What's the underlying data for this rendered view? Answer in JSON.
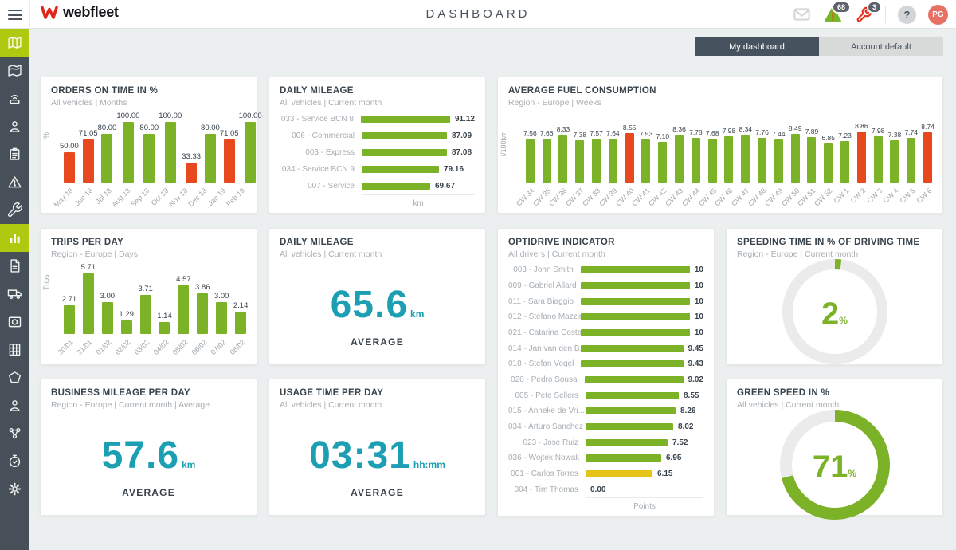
{
  "header": {
    "logo_text": "webfleet",
    "title": "DASHBOARD",
    "alerts_badge": "68",
    "service_badge": "3",
    "help_label": "?",
    "avatar_initials": "PG"
  },
  "tabs": {
    "my_dashboard": "My dashboard",
    "account_default": "Account default"
  },
  "sidebar": {
    "items": [
      {
        "icon": "map-icon",
        "active": true
      },
      {
        "icon": "map-routes-icon",
        "active": false
      },
      {
        "icon": "device-icon",
        "active": false
      },
      {
        "icon": "driver-icon",
        "active": false
      },
      {
        "icon": "orders-icon",
        "active": false
      },
      {
        "icon": "alerts-icon",
        "active": false
      },
      {
        "icon": "service-icon",
        "active": false
      },
      {
        "icon": "reports-icon",
        "active": true
      },
      {
        "icon": "pdf-report-icon",
        "active": false
      },
      {
        "icon": "vehicles-icon",
        "active": false
      },
      {
        "icon": "camera-icon",
        "active": false
      },
      {
        "icon": "company-icon",
        "active": false
      },
      {
        "icon": "areas-icon",
        "active": false
      },
      {
        "icon": "users-icon",
        "active": false
      },
      {
        "icon": "connections-icon",
        "active": false
      },
      {
        "icon": "timer-icon",
        "active": false
      },
      {
        "icon": "settings-icon",
        "active": false
      }
    ]
  },
  "colors": {
    "green": "#7cb228",
    "red": "#e8481e",
    "yellow": "#e5c417",
    "teal": "#1c9fb2",
    "donut_track": "#ebebeb"
  },
  "cards": {
    "orders_on_time": {
      "type": "bar",
      "title": "ORDERS ON TIME IN %",
      "subtitle": "All vehicles  |  Months",
      "ylabel": "%",
      "categories": [
        "May 18",
        "Jun 18",
        "Jul 18",
        "Aug 18",
        "Sep 18",
        "Oct 18",
        "Nov 18",
        "Dec 18",
        "Jan 19",
        "Feb 19"
      ],
      "values": [
        50.0,
        71.05,
        80.0,
        100.0,
        80.0,
        100.0,
        33.33,
        80.0,
        71.05,
        100.0
      ],
      "labels": [
        "50.00",
        "71.05",
        "80.00",
        "100.00",
        "80.00",
        "100.00",
        "33.33",
        "80.00",
        "71.05",
        "100.00"
      ],
      "bar_colors": [
        "red",
        "red",
        "green",
        "green",
        "green",
        "green",
        "red",
        "green",
        "red",
        "green"
      ]
    },
    "daily_mileage_chart": {
      "type": "hbar",
      "title": "DAILY MILEAGE",
      "subtitle": "All vehicles  |  Current month",
      "xlabel": "km",
      "rows": [
        {
          "label": "033 - Service BCN 8",
          "value": 91.12,
          "display": "91.12",
          "color": "green"
        },
        {
          "label": "006 - Commercial",
          "value": 87.09,
          "display": "87.09",
          "color": "green"
        },
        {
          "label": "003 - Express",
          "value": 87.08,
          "display": "87.08",
          "color": "green"
        },
        {
          "label": "034 - Service BCN 9",
          "value": 79.16,
          "display": "79.16",
          "color": "green"
        },
        {
          "label": "007 - Service",
          "value": 69.67,
          "display": "69.67",
          "color": "green"
        }
      ]
    },
    "fuel_consumption": {
      "type": "bar",
      "title": "AVERAGE FUEL CONSUMPTION",
      "subtitle": "Region - Europe  |  Weeks",
      "ylabel": "l/100km",
      "categories": [
        "CW 34",
        "CW 35",
        "CW 36",
        "CW 37",
        "CW 38",
        "CW 39",
        "CW 40",
        "CW 41",
        "CW 42",
        "CW 43",
        "CW 44",
        "CW 45",
        "CW 46",
        "CW 47",
        "CW 48",
        "CW 49",
        "CW 50",
        "CW 51",
        "CW 52",
        "CW 1",
        "CW 2",
        "CW 3",
        "CW 4",
        "CW 5",
        "CW 6"
      ],
      "values": [
        7.56,
        7.66,
        8.33,
        7.38,
        7.57,
        7.64,
        8.55,
        7.53,
        7.1,
        8.36,
        7.78,
        7.68,
        7.98,
        8.34,
        7.76,
        7.44,
        8.49,
        7.89,
        6.85,
        7.23,
        8.86,
        7.98,
        7.38,
        7.74,
        8.74
      ],
      "labels": [
        "7.56",
        "7.66",
        "8.33",
        "7.38",
        "7.57",
        "7.64",
        "8.55",
        "7.53",
        "7.10",
        "8.36",
        "7.78",
        "7.68",
        "7.98",
        "8.34",
        "7.76",
        "7.44",
        "8.49",
        "7.89",
        "6.85",
        "7.23",
        "8.86",
        "7.98",
        "7.38",
        "7.74",
        "8.74"
      ],
      "bar_colors": [
        "green",
        "green",
        "green",
        "green",
        "green",
        "green",
        "red",
        "green",
        "green",
        "green",
        "green",
        "green",
        "green",
        "green",
        "green",
        "green",
        "green",
        "green",
        "green",
        "green",
        "red",
        "green",
        "green",
        "green",
        "red"
      ]
    },
    "trips_per_day": {
      "type": "bar",
      "title": "TRIPS PER DAY",
      "subtitle": "Region - Europe  |  Days",
      "ylabel": "Trips",
      "categories": [
        "30/01",
        "31/01",
        "01/02",
        "02/02",
        "03/02",
        "04/02",
        "05/02",
        "06/02",
        "07/02",
        "08/02"
      ],
      "values": [
        2.71,
        5.71,
        3.0,
        1.29,
        3.71,
        1.14,
        4.57,
        3.86,
        3.0,
        2.14
      ],
      "labels": [
        "2.71",
        "5.71",
        "3.00",
        "1.29",
        "3.71",
        "1.14",
        "4.57",
        "3.86",
        "3.00",
        "2.14"
      ],
      "bar_colors": [
        "green",
        "green",
        "green",
        "green",
        "green",
        "green",
        "green",
        "green",
        "green",
        "green"
      ]
    },
    "daily_mileage_avg": {
      "type": "kpi",
      "title": "DAILY MILEAGE",
      "subtitle": "All vehicles  |  Current month",
      "value": "65.6",
      "unit": "km",
      "caption": "AVERAGE"
    },
    "optidrive": {
      "type": "hbar",
      "title": "OPTIDRIVE INDICATOR",
      "subtitle": "All drivers  |  Current month",
      "xlabel": "Points",
      "rows": [
        {
          "label": "003 - John Smith",
          "value": 10,
          "display": "10",
          "color": "green"
        },
        {
          "label": "009 - Gabriel Allard",
          "value": 10,
          "display": "10",
          "color": "green"
        },
        {
          "label": "011 - Sara Biaggio",
          "value": 10,
          "display": "10",
          "color": "green"
        },
        {
          "label": "012 - Stefano Mazzini",
          "value": 10,
          "display": "10",
          "color": "green"
        },
        {
          "label": "021 - Catarina Costa",
          "value": 10,
          "display": "10",
          "color": "green"
        },
        {
          "label": "014 - Jan van den B...",
          "value": 9.45,
          "display": "9.45",
          "color": "green"
        },
        {
          "label": "018 - Stefan Vogel",
          "value": 9.43,
          "display": "9.43",
          "color": "green"
        },
        {
          "label": "020 - Pedro Sousa",
          "value": 9.02,
          "display": "9.02",
          "color": "green"
        },
        {
          "label": "005 - Pete Sellers",
          "value": 8.55,
          "display": "8.55",
          "color": "green"
        },
        {
          "label": "015 - Anneke de Vri...",
          "value": 8.26,
          "display": "8.26",
          "color": "green"
        },
        {
          "label": "034 - Arturo Sanchez",
          "value": 8.02,
          "display": "8.02",
          "color": "green"
        },
        {
          "label": "023 - Jose Ruiz",
          "value": 7.52,
          "display": "7.52",
          "color": "green"
        },
        {
          "label": "036 - Wojtek Nowak",
          "value": 6.95,
          "display": "6.95",
          "color": "green"
        },
        {
          "label": "001 - Carlos Torres",
          "value": 6.15,
          "display": "6.15",
          "color": "yellow"
        },
        {
          "label": "004 - Tim Thomas",
          "value": 0,
          "display": "0.00",
          "color": "green"
        }
      ]
    },
    "speeding_time": {
      "type": "donut",
      "title": "SPEEDING TIME IN % OF DRIVING TIME",
      "subtitle": "Region - Europe  |  Current month",
      "percent": 2,
      "display": "2",
      "unit": "%"
    },
    "business_mileage": {
      "type": "kpi",
      "title": "BUSINESS MILEAGE PER DAY",
      "subtitle": "Region - Europe  |  Current month  |  Average",
      "value": "57.6",
      "unit": "km",
      "caption": "AVERAGE"
    },
    "usage_time": {
      "type": "kpi",
      "title": "USAGE TIME PER DAY",
      "subtitle": "All vehicles  |  Current month",
      "value": "03:31",
      "unit": "hh:mm",
      "caption": "AVERAGE"
    },
    "green_speed": {
      "type": "donut",
      "title": "GREEN SPEED IN %",
      "subtitle": "All vehicles  |  Current month",
      "percent": 71,
      "display": "71",
      "unit": "%"
    }
  }
}
